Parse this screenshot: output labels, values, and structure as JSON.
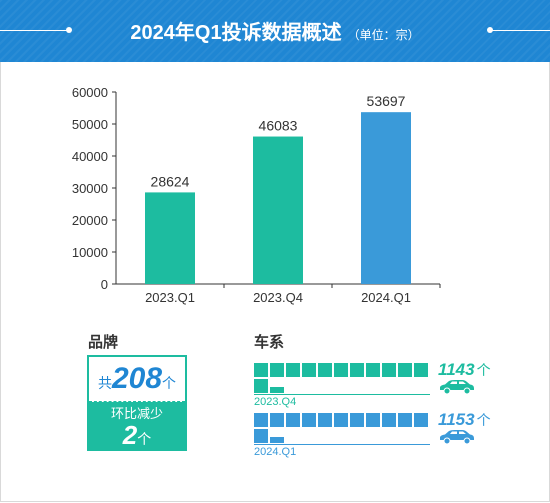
{
  "header": {
    "title": "2024年Q1投诉数据概述",
    "unit": "（单位：宗）"
  },
  "chart_data": {
    "type": "bar",
    "categories": [
      "2023.Q1",
      "2023.Q4",
      "2024.Q1"
    ],
    "values": [
      28624,
      46083,
      53697
    ],
    "colors": [
      "#1dbca0",
      "#1dbca0",
      "#3a9ad9"
    ],
    "ylim": [
      0,
      60000
    ],
    "yticks": [
      0,
      10000,
      20000,
      30000,
      40000,
      50000,
      60000
    ],
    "grid": false
  },
  "brand": {
    "label": "品牌",
    "prefix": "共",
    "total": "208",
    "unit": "个",
    "change_label": "环比减少",
    "change_value": "2",
    "change_unit": "个"
  },
  "series_section": {
    "label": "车系",
    "rows": [
      {
        "period": "2023.Q4",
        "count": "1143",
        "unit": "个",
        "color": "#1dbca0"
      },
      {
        "period": "2024.Q1",
        "count": "1153",
        "unit": "个",
        "color": "#3a9ad9"
      }
    ]
  }
}
